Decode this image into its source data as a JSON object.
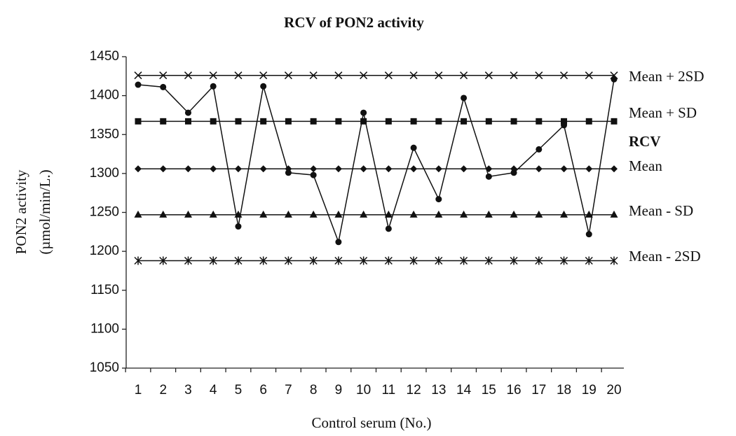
{
  "chart_data": {
    "type": "line",
    "title": "RCV of PON2 activity",
    "x_label": "Control serum (No.)",
    "y_label": [
      "PON2 activity",
      "(µmol/min/L.)"
    ],
    "categories": [
      1,
      2,
      3,
      4,
      5,
      6,
      7,
      8,
      9,
      10,
      11,
      12,
      13,
      14,
      15,
      16,
      17,
      18,
      19,
      20
    ],
    "ylim": [
      1050,
      1450
    ],
    "yticks": [
      1050,
      1100,
      1150,
      1200,
      1250,
      1300,
      1350,
      1400,
      1450
    ],
    "series": [
      {
        "name": "Mean + 2SD",
        "color": "#111",
        "marker": "x",
        "values": [
          1426,
          1426,
          1426,
          1426,
          1426,
          1426,
          1426,
          1426,
          1426,
          1426,
          1426,
          1426,
          1426,
          1426,
          1426,
          1426,
          1426,
          1426,
          1426,
          1426
        ]
      },
      {
        "name": "Mean + SD",
        "color": "#111",
        "marker": "square",
        "values": [
          1367,
          1367,
          1367,
          1367,
          1367,
          1367,
          1367,
          1367,
          1367,
          1367,
          1367,
          1367,
          1367,
          1367,
          1367,
          1367,
          1367,
          1367,
          1367,
          1367
        ]
      },
      {
        "name": "RCV",
        "color": "#111",
        "marker": "circle",
        "values": [
          1414,
          1411,
          1378,
          1412,
          1232,
          1412,
          1301,
          1298,
          1212,
          1378,
          1229,
          1333,
          1267,
          1397,
          1296,
          1301,
          1331,
          1362,
          1222,
          1421
        ]
      },
      {
        "name": "Mean",
        "color": "#111",
        "marker": "diamond",
        "values": [
          1306,
          1306,
          1306,
          1306,
          1306,
          1306,
          1306,
          1306,
          1306,
          1306,
          1306,
          1306,
          1306,
          1306,
          1306,
          1306,
          1306,
          1306,
          1306,
          1306
        ]
      },
      {
        "name": "Mean - SD",
        "color": "#111",
        "marker": "triangle",
        "values": [
          1247,
          1247,
          1247,
          1247,
          1247,
          1247,
          1247,
          1247,
          1247,
          1247,
          1247,
          1247,
          1247,
          1247,
          1247,
          1247,
          1247,
          1247,
          1247,
          1247
        ]
      },
      {
        "name": "Mean - 2SD",
        "color": "#111",
        "marker": "asterisk",
        "values": [
          1188,
          1188,
          1188,
          1188,
          1188,
          1188,
          1188,
          1188,
          1188,
          1188,
          1188,
          1188,
          1188,
          1188,
          1188,
          1188,
          1188,
          1188,
          1188,
          1188
        ]
      }
    ]
  }
}
